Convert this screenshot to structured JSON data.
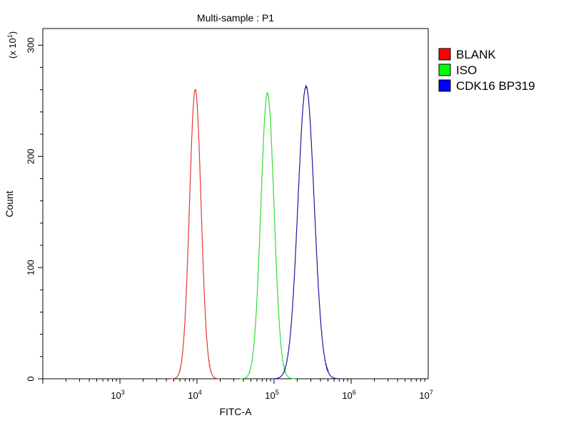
{
  "chart_data": {
    "type": "line",
    "title": "Multi-sample : P1",
    "xlabel": "FITC-A",
    "ylabel": "Count",
    "y_multiplier_label": "(x 10",
    "y_multiplier_exp": "1",
    "x_scale": "log",
    "xlim": [
      100,
      10000000
    ],
    "ylim": [
      0,
      315
    ],
    "x_ticks": [
      {
        "base": "10",
        "exp": "3",
        "value": 1000
      },
      {
        "base": "10",
        "exp": "4",
        "value": 10000
      },
      {
        "base": "10",
        "exp": "5",
        "value": 100000
      },
      {
        "base": "10",
        "exp": "6",
        "value": 1000000
      },
      {
        "base": "10",
        "exp": "7",
        "value": 10000000
      }
    ],
    "y_ticks": [
      {
        "label": "0",
        "value": 0
      },
      {
        "label": "100",
        "value": 100
      },
      {
        "label": "200",
        "value": 200
      },
      {
        "label": "300",
        "value": 300
      }
    ],
    "grid": false,
    "legend_position": "right",
    "series": [
      {
        "name": "BLANK",
        "color": "#e53935",
        "legend_color": "#ff0000",
        "peak_x": 9500,
        "peak_y": 260,
        "log_sigma": 0.075
      },
      {
        "name": "ISO",
        "color": "#33dd33",
        "legend_color": "#00ff00",
        "peak_x": 82000,
        "peak_y": 257,
        "log_sigma": 0.085
      },
      {
        "name": "CDK16 BP319",
        "color": "#1a1aa0",
        "legend_color": "#0000ff",
        "peak_x": 260000,
        "peak_y": 263,
        "log_sigma": 0.105
      }
    ]
  }
}
